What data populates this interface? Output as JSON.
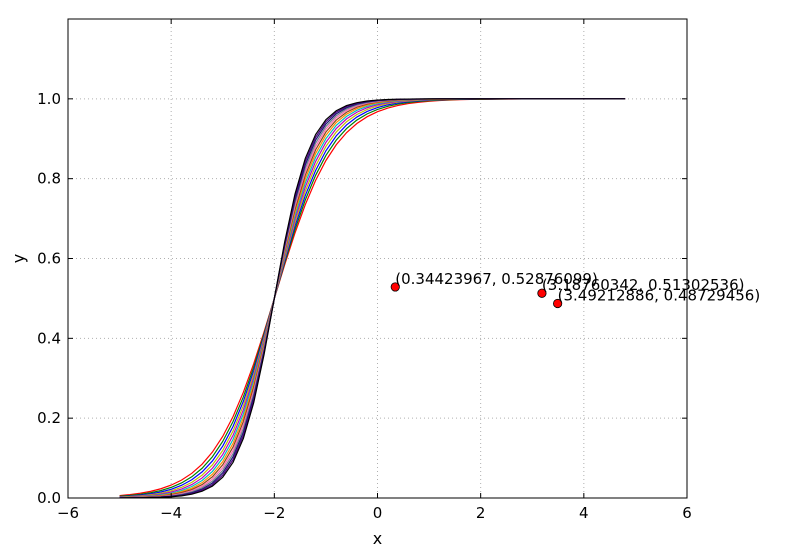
{
  "chart_data": {
    "type": "line",
    "title": "",
    "xlabel": "x",
    "ylabel": "y",
    "xlim": [
      -6,
      6
    ],
    "ylim": [
      0,
      1.2
    ],
    "xticks": [
      -6,
      -4,
      -2,
      0,
      2,
      4,
      6
    ],
    "yticks": [
      0.0,
      0.2,
      0.4,
      0.6,
      0.8,
      1.0
    ],
    "xtick_labels": [
      "−6",
      "−4",
      "−2",
      "0",
      "2",
      "4",
      "6"
    ],
    "ytick_labels": [
      "0.0",
      "0.2",
      "0.4",
      "0.6",
      "0.8",
      "1.0"
    ],
    "grid": true,
    "legend": "none",
    "curve_family": {
      "function": "logistic sigmoid y = 1 / (1 + exp(-k*(x + 2)))",
      "x_start": -5.0,
      "x_end": 4.8,
      "x_step": 0.2,
      "center": -2,
      "slopes": [
        1.7,
        1.8,
        1.9,
        2.0,
        2.1,
        2.2,
        2.3,
        2.4,
        2.5,
        2.6,
        2.7,
        2.8,
        2.9
      ],
      "colors": [
        "#ff0000",
        "#008000",
        "#0000ff",
        "#bfbf00",
        "#bf00bf",
        "#00bfbf",
        "#ff8c00",
        "#8b4513",
        "#ff69b4",
        "#708090",
        "#191970",
        "#4b0082",
        "#000000"
      ]
    },
    "points": [
      {
        "x": 0.34423967,
        "y": 0.52876099,
        "label": "(0.34423967, 0.52876099)"
      },
      {
        "x": 3.18760342,
        "y": 0.51302536,
        "label": "(3.18760342, 0.51302536)"
      },
      {
        "x": 3.49212886,
        "y": 0.48729456,
        "label": "(3.49212886, 0.48729456)"
      }
    ],
    "point_color": "#ff0000"
  }
}
